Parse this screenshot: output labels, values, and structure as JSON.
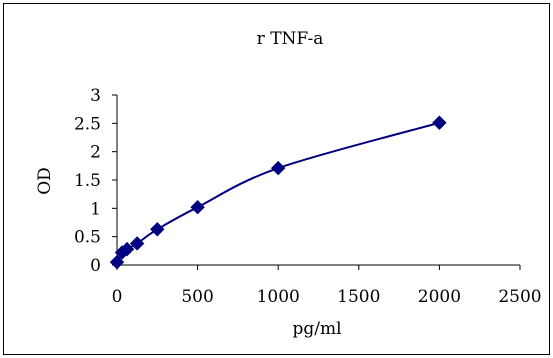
{
  "chart_data": {
    "type": "scatter",
    "title": "r TNF-a",
    "xlabel": "pg/ml",
    "ylabel": "OD",
    "xlim": [
      0,
      2500
    ],
    "ylim": [
      0,
      3
    ],
    "x_ticks": [
      "0",
      "500",
      "1000",
      "1500",
      "2000",
      "2500"
    ],
    "y_ticks": [
      "0",
      "0.5",
      "1",
      "1.5",
      "2",
      "2.5",
      "3"
    ],
    "grid": false,
    "legend": "none",
    "marker": "diamond",
    "trendline": "smooth",
    "color": "#000080",
    "series": [
      {
        "x": [
          0,
          31.25,
          62.5,
          125,
          250,
          500,
          1000,
          2000
        ],
        "y": [
          0.05,
          0.22,
          0.28,
          0.38,
          0.63,
          1.02,
          1.71,
          2.51
        ]
      }
    ]
  }
}
